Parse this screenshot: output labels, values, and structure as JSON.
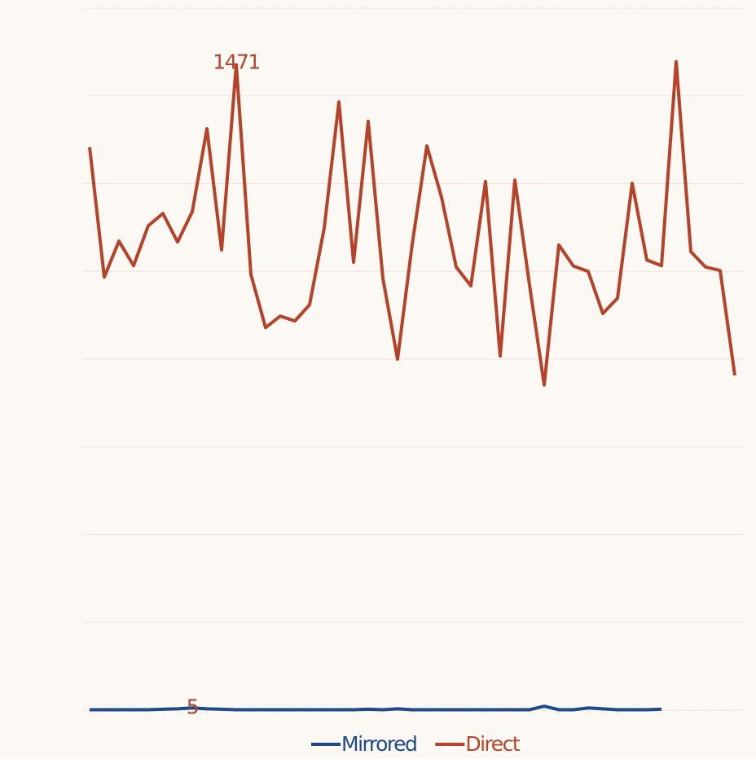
{
  "chart_data": {
    "type": "line",
    "categories": [
      null,
      null,
      null,
      null,
      null,
      null,
      null,
      null,
      null,
      null,
      null,
      null,
      null,
      null,
      null,
      null,
      null,
      null,
      null,
      null,
      null,
      null,
      null,
      null,
      null,
      null,
      null,
      null,
      null,
      null,
      null,
      null,
      null,
      null,
      null,
      null,
      null,
      null,
      null,
      null,
      null,
      null,
      null,
      null,
      null
    ],
    "series": [
      {
        "name": "Mirrored",
        "color": "#1f4a8a",
        "values": [
          1,
          1,
          1,
          1,
          1,
          2,
          3,
          5,
          3,
          2,
          1,
          1,
          1,
          1,
          1,
          1,
          1,
          1,
          1,
          2,
          1,
          3,
          1,
          1,
          1,
          1,
          1,
          1,
          1,
          1,
          1,
          9,
          1,
          1,
          5,
          3,
          1,
          1,
          1,
          2,
          null,
          null,
          null,
          null,
          null
        ],
        "value_labels": [
          null,
          null,
          null,
          null,
          null,
          null,
          null,
          "5",
          null,
          null,
          null,
          null,
          null,
          null,
          null,
          null,
          null,
          null,
          null,
          null,
          null,
          null,
          null,
          null,
          null,
          null,
          null,
          null,
          null,
          null,
          null,
          null,
          null,
          null,
          null,
          null,
          null,
          null,
          null,
          null,
          null,
          null,
          null,
          null,
          null
        ]
      },
      {
        "name": "Direct",
        "color": "#b5432a",
        "values": [
          1283,
          987,
          1069,
          1013,
          1104,
          1132,
          1067,
          1136,
          1325,
          1049,
          1471,
          993,
          872,
          898,
          887,
          924,
          1099,
          1386,
          1021,
          1342,
          984,
          800,
          1062,
          1286,
          1169,
          1010,
          967,
          1205,
          807,
          1208,
          969,
          741,
          1060,
          1012,
          1000,
          904,
          939,
          1201,
          1026,
          1013,
          1478,
          1045,
          1010,
          1002,
          763
        ],
        "value_labels": [
          null,
          null,
          null,
          null,
          null,
          null,
          null,
          null,
          null,
          null,
          "1471",
          null,
          null,
          null,
          null,
          null,
          null,
          null,
          null,
          null,
          null,
          null,
          null,
          null,
          null,
          null,
          null,
          null,
          null,
          null,
          null,
          null,
          null,
          null,
          null,
          null,
          null,
          null,
          null,
          null,
          null,
          null,
          null,
          null,
          null
        ]
      }
    ],
    "ylim": [
      0,
      1600
    ],
    "yticks": [
      0,
      200,
      400,
      600,
      800,
      1000,
      1200,
      1400,
      1600
    ],
    "grid": true,
    "legend": "bottom"
  }
}
